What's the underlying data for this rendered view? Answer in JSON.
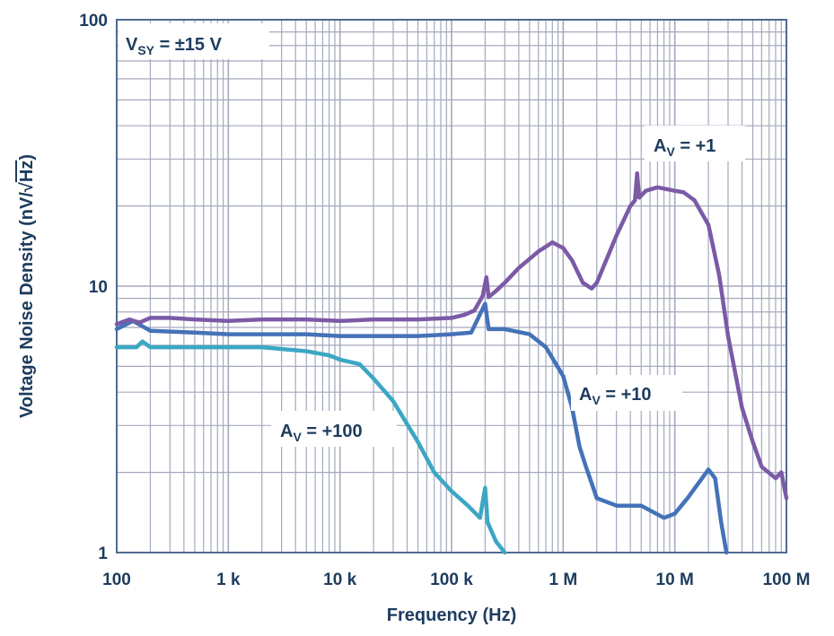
{
  "chart_data": {
    "type": "line",
    "title": "",
    "xlabel": "Frequency (Hz)",
    "ylabel_main": "Voltage Noise Density (nV/",
    "ylabel_sqrt": "√",
    "ylabel_hz": "Hz",
    "ylabel_close": ")",
    "xscale": "log",
    "yscale": "log",
    "xlim": [
      100,
      100000000
    ],
    "ylim": [
      1,
      100
    ],
    "grid": true,
    "x_ticks": [
      100,
      1000,
      10000,
      100000,
      1000000,
      10000000,
      100000000
    ],
    "x_tick_labels": [
      "100",
      "1 k",
      "10 k",
      "100 k",
      "1 M",
      "10 M",
      "100 M"
    ],
    "y_ticks": [
      1,
      10,
      100
    ],
    "y_tick_labels": [
      "1",
      "10",
      "100"
    ],
    "condition": {
      "main": "V",
      "sub": "SY",
      "rest": " = ±15 V"
    },
    "series": [
      {
        "name": "+1",
        "label_main": "A",
        "label_sub": "V",
        "label_rest": " = +1",
        "color": "#7b5aa6",
        "points": [
          [
            100,
            7.2
          ],
          [
            130,
            7.5
          ],
          [
            160,
            7.3
          ],
          [
            200,
            7.6
          ],
          [
            300,
            7.6
          ],
          [
            500,
            7.5
          ],
          [
            1000,
            7.4
          ],
          [
            2000,
            7.5
          ],
          [
            5000,
            7.5
          ],
          [
            10000,
            7.4
          ],
          [
            20000,
            7.5
          ],
          [
            50000,
            7.5
          ],
          [
            100000,
            7.6
          ],
          [
            130000,
            7.8
          ],
          [
            160000,
            8.1
          ],
          [
            190000,
            9.2
          ],
          [
            205000,
            10.8
          ],
          [
            215000,
            9.1
          ],
          [
            250000,
            9.6
          ],
          [
            300000,
            10.3
          ],
          [
            400000,
            11.7
          ],
          [
            600000,
            13.5
          ],
          [
            800000,
            14.6
          ],
          [
            1000000,
            13.9
          ],
          [
            1200000,
            12.5
          ],
          [
            1500000,
            10.3
          ],
          [
            1800000,
            9.8
          ],
          [
            2000000,
            10.3
          ],
          [
            3000000,
            15.5
          ],
          [
            4000000,
            20.0
          ],
          [
            4400000,
            21.0
          ],
          [
            4600000,
            26.5
          ],
          [
            4800000,
            21.5
          ],
          [
            5500000,
            22.8
          ],
          [
            7000000,
            23.5
          ],
          [
            10000000,
            22.8
          ],
          [
            12000000,
            22.5
          ],
          [
            15000000,
            21.0
          ],
          [
            20000000,
            17.0
          ],
          [
            25000000,
            11.0
          ],
          [
            30000000,
            6.5
          ],
          [
            40000000,
            3.5
          ],
          [
            50000000,
            2.6
          ],
          [
            60000000,
            2.1
          ],
          [
            80000000,
            1.9
          ],
          [
            90000000,
            2.0
          ],
          [
            100000000,
            1.6
          ]
        ]
      },
      {
        "name": "+10",
        "label_main": "A",
        "label_sub": "V",
        "label_rest": " = +10",
        "color": "#4472b8",
        "points": [
          [
            100,
            6.9
          ],
          [
            140,
            7.4
          ],
          [
            200,
            6.8
          ],
          [
            500,
            6.7
          ],
          [
            1000,
            6.6
          ],
          [
            2000,
            6.6
          ],
          [
            5000,
            6.6
          ],
          [
            10000,
            6.5
          ],
          [
            20000,
            6.5
          ],
          [
            50000,
            6.5
          ],
          [
            100000,
            6.6
          ],
          [
            150000,
            6.7
          ],
          [
            200000,
            8.6
          ],
          [
            215000,
            6.9
          ],
          [
            300000,
            6.9
          ],
          [
            500000,
            6.6
          ],
          [
            700000,
            5.9
          ],
          [
            1000000,
            4.6
          ],
          [
            1200000,
            3.5
          ],
          [
            1400000,
            2.5
          ],
          [
            1600000,
            2.1
          ],
          [
            2000000,
            1.6
          ],
          [
            3000000,
            1.5
          ],
          [
            5000000,
            1.5
          ],
          [
            8000000,
            1.35
          ],
          [
            10000000,
            1.4
          ],
          [
            13000000,
            1.6
          ],
          [
            20000000,
            2.05
          ],
          [
            23000000,
            1.9
          ],
          [
            26000000,
            1.3
          ],
          [
            29000000,
            1.0
          ]
        ]
      },
      {
        "name": "+100",
        "label_main": "A",
        "label_sub": "V",
        "label_rest": " = +100",
        "color": "#3ba7c4",
        "points": [
          [
            100,
            5.9
          ],
          [
            150,
            5.9
          ],
          [
            170,
            6.2
          ],
          [
            200,
            5.9
          ],
          [
            300,
            5.9
          ],
          [
            500,
            5.9
          ],
          [
            1000,
            5.9
          ],
          [
            2000,
            5.9
          ],
          [
            5000,
            5.7
          ],
          [
            8000,
            5.5
          ],
          [
            10000,
            5.3
          ],
          [
            15000,
            5.1
          ],
          [
            20000,
            4.5
          ],
          [
            30000,
            3.7
          ],
          [
            50000,
            2.6
          ],
          [
            70000,
            2.0
          ],
          [
            100000,
            1.7
          ],
          [
            140000,
            1.5
          ],
          [
            180000,
            1.35
          ],
          [
            200000,
            1.75
          ],
          [
            210000,
            1.3
          ],
          [
            250000,
            1.1
          ],
          [
            300000,
            1.0
          ]
        ]
      }
    ]
  }
}
